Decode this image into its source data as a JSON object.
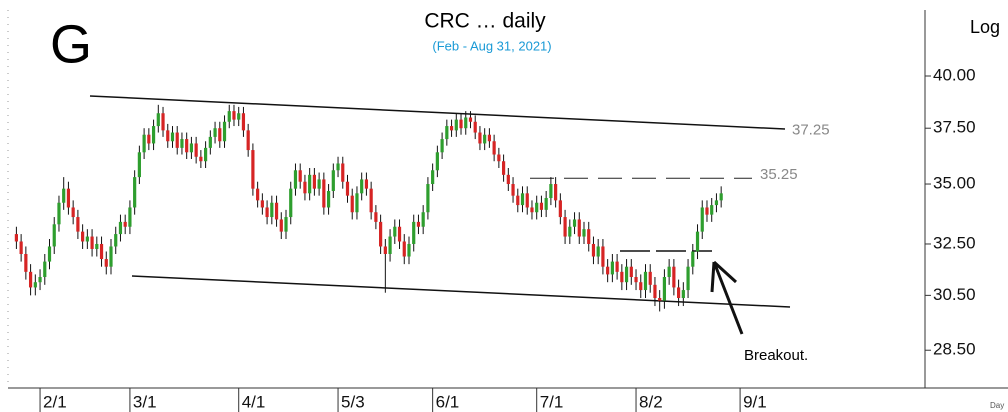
{
  "chart_data": {
    "type": "candlestick",
    "title": "CRC … daily",
    "subtitle": "(Feb - Aug 31, 2021)",
    "corner_label": "G",
    "y_axis_label": "Log",
    "x_axis_label": "Day",
    "log_scale": true,
    "up_color": "#2e9e2e",
    "down_color": "#d62424",
    "ylim": [
      27.2,
      43.4
    ],
    "yticks": [
      {
        "value": 28.5,
        "label": "28.50"
      },
      {
        "value": 30.5,
        "label": "30.50"
      },
      {
        "value": 32.5,
        "label": "32.50"
      },
      {
        "value": 35,
        "label": "35.00"
      },
      {
        "value": 37.5,
        "label": "37.50"
      },
      {
        "value": 40,
        "label": "40.00"
      }
    ],
    "levels": [
      {
        "value": 37.25,
        "label": "37.25"
      },
      {
        "value": 35.25,
        "label": "35.25"
      }
    ],
    "annotation": "Breakout.",
    "categories": [
      null,
      null,
      null,
      null,
      null,
      "2/1",
      null,
      null,
      null,
      null,
      null,
      null,
      null,
      null,
      null,
      null,
      null,
      null,
      null,
      null,
      null,
      null,
      null,
      null,
      "3/1",
      null,
      null,
      null,
      null,
      null,
      null,
      null,
      null,
      null,
      null,
      null,
      null,
      null,
      null,
      null,
      null,
      null,
      null,
      null,
      null,
      null,
      null,
      "4/1",
      null,
      null,
      null,
      null,
      null,
      null,
      null,
      null,
      null,
      null,
      null,
      null,
      null,
      null,
      null,
      null,
      null,
      null,
      null,
      null,
      "5/3",
      null,
      null,
      null,
      null,
      null,
      null,
      null,
      null,
      null,
      null,
      null,
      null,
      null,
      null,
      null,
      null,
      null,
      null,
      null,
      "6/1",
      null,
      null,
      null,
      null,
      null,
      null,
      null,
      null,
      null,
      null,
      null,
      null,
      null,
      null,
      null,
      null,
      null,
      null,
      null,
      null,
      null,
      "7/1",
      null,
      null,
      null,
      null,
      null,
      null,
      null,
      null,
      null,
      null,
      null,
      null,
      null,
      null,
      null,
      null,
      null,
      null,
      null,
      null,
      "8/2",
      null,
      null,
      null,
      null,
      null,
      null,
      null,
      null,
      null,
      null,
      null,
      null,
      null,
      null,
      null,
      null,
      null,
      null,
      null,
      null,
      null,
      "9/1"
    ],
    "open": [
      32.9,
      32.6,
      32.1,
      31.4,
      30.8,
      31.0,
      31.2,
      31.8,
      32.4,
      33.3,
      34.2,
      34.8,
      34.0,
      33.6,
      33.0,
      32.6,
      32.8,
      32.3,
      32.5,
      31.9,
      31.6,
      32.4,
      32.9,
      33.4,
      33.2,
      34.0,
      35.3,
      36.4,
      37.2,
      36.8,
      37.6,
      38.2,
      37.4,
      36.9,
      37.3,
      36.6,
      37.0,
      36.4,
      36.8,
      36.2,
      36.0,
      36.6,
      37.1,
      37.5,
      36.9,
      37.8,
      38.3,
      37.9,
      38.2,
      37.4,
      36.5,
      34.8,
      34.3,
      34.0,
      33.6,
      34.2,
      33.5,
      33.0,
      33.6,
      34.8,
      35.6,
      35.1,
      34.6,
      35.4,
      34.8,
      35.2,
      34.0,
      34.7,
      35.6,
      35.9,
      35.1,
      34.5,
      33.8,
      34.6,
      35.2,
      34.8,
      33.8,
      33.4,
      32.4,
      32.1,
      32.8,
      33.2,
      32.6,
      32.0,
      32.5,
      33.4,
      33.2,
      33.8,
      35.0,
      35.6,
      36.4,
      37.0,
      37.6,
      37.4,
      37.9,
      37.5,
      38.0,
      37.8,
      37.3,
      36.8,
      37.2,
      36.9,
      36.3,
      36.0,
      35.4,
      35.0,
      34.5,
      34.1,
      34.6,
      34.0,
      33.8,
      34.2,
      33.9,
      34.4,
      35.0,
      34.3,
      33.6,
      32.8,
      33.2,
      33.5,
      32.8,
      33.1,
      32.5,
      32.0,
      32.4,
      31.6,
      31.3,
      31.8,
      31.4,
      31.0,
      31.6,
      31.2,
      31.0,
      30.7,
      31.4,
      30.9,
      30.4,
      30.3,
      31.2,
      31.6,
      30.8,
      30.4,
      30.7,
      31.6,
      32.2,
      33.0,
      34.0,
      33.7,
      34.1,
      34.3,
      null,
      null,
      null,
      null
    ],
    "high": [
      33.2,
      32.9,
      32.4,
      31.7,
      31.3,
      31.5,
      32.1,
      32.7,
      33.6,
      34.5,
      35.3,
      35.1,
      34.3,
      33.9,
      33.3,
      33.1,
      33.1,
      32.8,
      32.8,
      32.2,
      32.7,
      33.2,
      33.7,
      33.7,
      34.3,
      35.6,
      36.7,
      37.5,
      37.5,
      37.9,
      38.6,
      38.5,
      37.7,
      37.6,
      37.6,
      37.3,
      37.3,
      37.1,
      37.1,
      36.5,
      36.9,
      37.4,
      37.8,
      37.8,
      38.1,
      38.6,
      38.6,
      38.5,
      38.5,
      37.7,
      36.8,
      35.1,
      34.6,
      34.3,
      34.5,
      34.5,
      33.8,
      33.9,
      35.1,
      35.9,
      35.9,
      35.4,
      35.7,
      35.7,
      35.5,
      35.5,
      35.0,
      35.9,
      36.2,
      36.2,
      35.4,
      34.8,
      34.9,
      35.5,
      35.5,
      35.1,
      34.1,
      33.7,
      32.7,
      33.1,
      33.5,
      33.5,
      32.9,
      32.8,
      33.7,
      33.7,
      34.1,
      35.3,
      35.9,
      36.7,
      37.3,
      37.9,
      37.9,
      38.2,
      38.2,
      38.3,
      38.3,
      38.1,
      37.6,
      37.5,
      37.5,
      37.2,
      36.6,
      36.3,
      35.7,
      35.3,
      34.8,
      34.9,
      34.9,
      34.3,
      34.5,
      34.5,
      34.7,
      35.3,
      35.3,
      34.6,
      33.9,
      33.5,
      33.8,
      33.8,
      33.4,
      33.4,
      32.8,
      32.7,
      32.7,
      31.9,
      32.1,
      32.1,
      31.7,
      31.9,
      31.9,
      31.5,
      31.3,
      31.7,
      31.7,
      31.2,
      30.7,
      31.5,
      31.9,
      31.9,
      31.1,
      31.0,
      31.9,
      32.5,
      33.3,
      34.3,
      34.3,
      34.4,
      34.6,
      34.9,
      null,
      null,
      null,
      null
    ],
    "low": [
      32.3,
      31.8,
      31.1,
      30.5,
      30.5,
      30.7,
      30.9,
      31.5,
      32.1,
      33.0,
      33.9,
      33.7,
      33.3,
      32.7,
      32.3,
      32.3,
      32.0,
      32.0,
      31.6,
      31.3,
      31.3,
      32.1,
      32.6,
      32.9,
      32.9,
      33.7,
      35.0,
      36.1,
      36.5,
      36.5,
      37.3,
      37.1,
      36.6,
      36.6,
      36.3,
      36.3,
      36.1,
      36.1,
      35.9,
      35.7,
      35.7,
      36.3,
      36.8,
      36.6,
      36.6,
      37.5,
      37.6,
      37.6,
      37.1,
      36.2,
      34.5,
      34.0,
      33.7,
      33.3,
      33.3,
      33.2,
      32.7,
      32.7,
      33.3,
      34.5,
      34.8,
      34.3,
      34.3,
      34.5,
      34.5,
      33.7,
      33.7,
      34.4,
      35.3,
      34.8,
      34.2,
      33.5,
      33.5,
      34.3,
      34.5,
      33.5,
      33.1,
      32.1,
      30.6,
      31.8,
      32.5,
      32.3,
      31.7,
      31.7,
      32.2,
      32.9,
      32.9,
      33.5,
      34.7,
      35.3,
      36.1,
      36.7,
      37.1,
      37.1,
      37.2,
      37.2,
      37.5,
      37.0,
      36.5,
      36.5,
      36.6,
      36.0,
      35.7,
      35.1,
      34.7,
      34.2,
      33.8,
      33.8,
      33.7,
      33.5,
      33.5,
      33.6,
      33.6,
      34.1,
      34.0,
      33.3,
      32.5,
      32.5,
      32.9,
      32.5,
      32.5,
      32.2,
      31.7,
      31.7,
      31.3,
      31.0,
      31.0,
      31.1,
      30.7,
      30.7,
      30.9,
      30.7,
      30.4,
      30.4,
      30.6,
      30.1,
      29.9,
      30.0,
      30.9,
      30.5,
      30.1,
      30.1,
      30.4,
      31.3,
      31.9,
      32.7,
      33.4,
      33.4,
      33.8,
      34.0,
      null,
      null,
      null,
      null
    ],
    "close": [
      32.6,
      32.1,
      31.4,
      30.8,
      31.0,
      31.2,
      31.8,
      32.4,
      33.3,
      34.2,
      34.8,
      34.0,
      33.6,
      33.0,
      32.6,
      32.8,
      32.3,
      32.5,
      31.9,
      31.6,
      32.4,
      32.9,
      33.4,
      33.2,
      34.0,
      35.3,
      36.4,
      37.2,
      36.8,
      37.6,
      38.2,
      37.4,
      36.9,
      37.3,
      36.6,
      37.0,
      36.4,
      36.8,
      36.2,
      36.0,
      36.6,
      37.1,
      37.5,
      36.9,
      37.8,
      38.3,
      37.9,
      38.2,
      37.4,
      36.5,
      34.8,
      34.3,
      34.0,
      33.6,
      34.2,
      33.5,
      33.0,
      33.6,
      34.8,
      35.6,
      35.1,
      34.6,
      35.4,
      34.8,
      35.2,
      34.0,
      34.7,
      35.6,
      35.9,
      35.1,
      34.5,
      33.8,
      34.6,
      35.2,
      34.8,
      33.8,
      33.4,
      32.4,
      32.1,
      32.8,
      33.2,
      32.6,
      32.0,
      32.5,
      33.4,
      33.2,
      33.8,
      35.0,
      35.6,
      36.4,
      37.0,
      37.6,
      37.4,
      37.9,
      37.5,
      38.0,
      37.8,
      37.3,
      36.8,
      37.2,
      36.9,
      36.3,
      36.0,
      35.4,
      35.0,
      34.5,
      34.1,
      34.6,
      34.0,
      33.8,
      34.2,
      33.9,
      34.4,
      35.0,
      34.3,
      33.6,
      32.8,
      33.2,
      33.5,
      32.8,
      33.1,
      32.5,
      32.0,
      32.4,
      31.6,
      31.3,
      31.8,
      31.4,
      31.0,
      31.6,
      31.2,
      31.0,
      30.7,
      31.4,
      30.9,
      30.4,
      30.3,
      31.2,
      31.6,
      30.8,
      30.4,
      30.7,
      31.6,
      32.2,
      33.0,
      34.0,
      33.7,
      34.1,
      34.3,
      34.6,
      null,
      null,
      null,
      null
    ]
  }
}
